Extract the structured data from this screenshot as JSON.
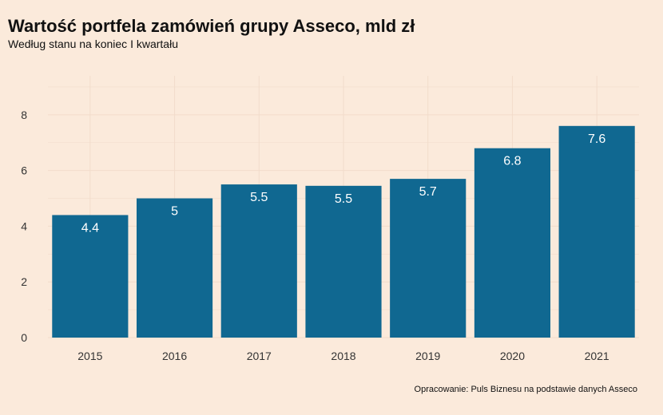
{
  "header": {
    "title": "Wartość portfela zamówień grupy Asseco, mld zł",
    "subtitle": "Według stanu na koniec I kwartału"
  },
  "footer": {
    "caption": "Opracowanie: Puls Biznesu na podstawie danych Asseco"
  },
  "colors": {
    "background": "#fbeadb",
    "bar": "#106891",
    "grid": "#f2dccb"
  },
  "chart_data": {
    "type": "bar",
    "title": "Wartość portfela zamówień grupy Asseco, mld zł",
    "subtitle": "Według stanu na koniec I kwartału",
    "xlabel": "",
    "ylabel": "",
    "categories": [
      "2015",
      "2016",
      "2017",
      "2018",
      "2019",
      "2020",
      "2021"
    ],
    "values": [
      4.4,
      5.0,
      5.5,
      5.45,
      5.7,
      6.8,
      7.6
    ],
    "data_labels": [
      "4.4",
      "5",
      "5.5",
      "5.5",
      "5.7",
      "6.8",
      "7.6"
    ],
    "ylim": [
      0,
      9.4
    ],
    "yticks": [
      0,
      2,
      4,
      6,
      8
    ],
    "grid": true,
    "legend": "none"
  }
}
